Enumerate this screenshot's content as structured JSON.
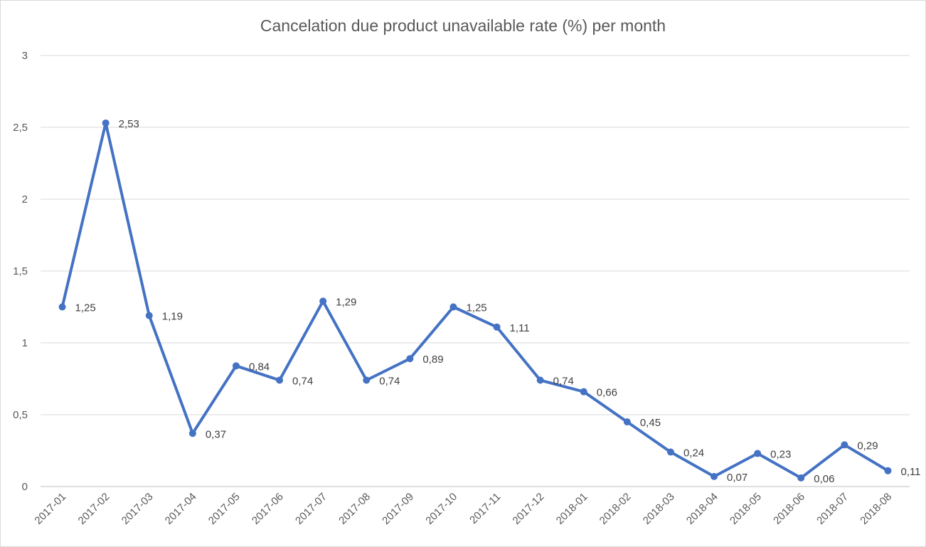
{
  "chart_data": {
    "type": "line",
    "title": "Cancelation due product unavailable rate (%) per month",
    "xlabel": "",
    "ylabel": "",
    "ylim": [
      0,
      3
    ],
    "yticks": [
      "0",
      "0,5",
      "1",
      "1,5",
      "2",
      "2,5",
      "3"
    ],
    "grid": true,
    "legend": "none",
    "line_color": "#4472c4",
    "categories": [
      "2017-01",
      "2017-02",
      "2017-03",
      "2017-04",
      "2017-05",
      "2017-06",
      "2017-07",
      "2017-08",
      "2017-09",
      "2017-10",
      "2017-11",
      "2017-12",
      "2018-01",
      "2018-02",
      "2018-03",
      "2018-04",
      "2018-05",
      "2018-06",
      "2018-07",
      "2018-08"
    ],
    "values": [
      1.25,
      2.53,
      1.19,
      0.37,
      0.84,
      0.74,
      1.29,
      0.74,
      0.89,
      1.25,
      1.11,
      0.74,
      0.66,
      0.45,
      0.24,
      0.07,
      0.23,
      0.06,
      0.29,
      0.11
    ],
    "data_labels": [
      "1,25",
      "2,53",
      "1,19",
      "0,37",
      "0,84",
      "0,74",
      "1,29",
      "0,74",
      "0,89",
      "1,25",
      "1,11",
      "0,74",
      "0,66",
      "0,45",
      "0,24",
      "0,07",
      "0,23",
      "0,06",
      "0,29",
      "0,11"
    ]
  }
}
